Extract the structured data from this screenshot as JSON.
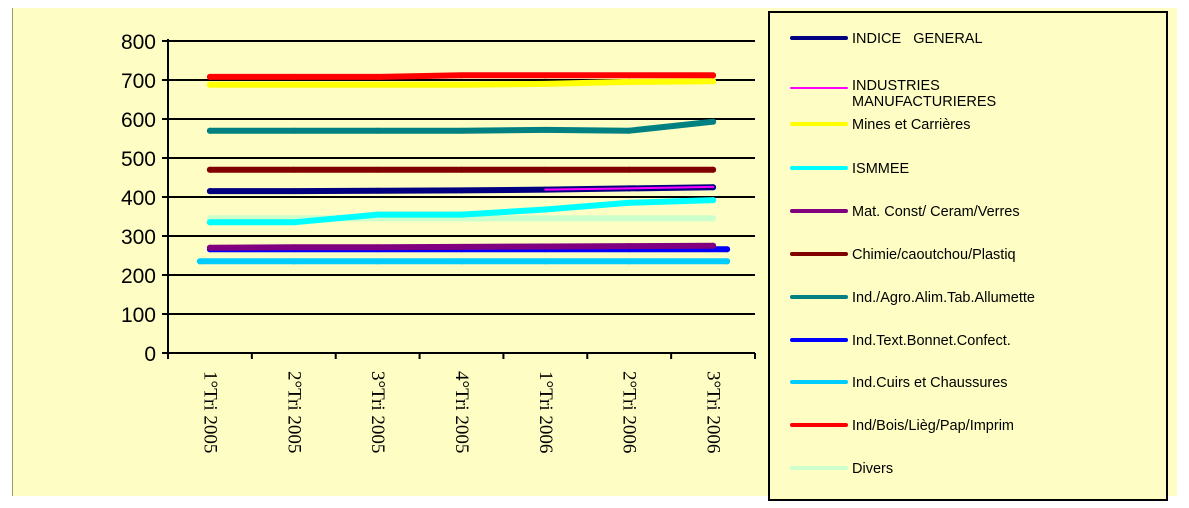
{
  "chart_data": {
    "type": "line",
    "title": "",
    "xlabel": "",
    "ylabel": "",
    "ylim": [
      0,
      800
    ],
    "yticks": [
      0,
      100,
      200,
      300,
      400,
      500,
      600,
      700,
      800
    ],
    "grid": true,
    "legend_position": "right",
    "categories": [
      "1°Tri 2005",
      "2°Tri 2005",
      "3°Tri 2005",
      "4°Tri 2005",
      "1°Tri 2006",
      "2°Tri 2006",
      "3°Tri 2006"
    ],
    "series": [
      {
        "name": "INDICE   GENERAL",
        "color": "#000080",
        "values": [
          415,
          415,
          416,
          417,
          419,
          422,
          425
        ]
      },
      {
        "name": "INDUSTRIES\nMANUFACTURIERES",
        "color": "#ff00ff",
        "values": [
          null,
          null,
          null,
          null,
          419,
          422,
          426
        ]
      },
      {
        "name": "Mines et Carrières",
        "color": "#ffff00",
        "values": [
          688,
          688,
          688,
          688,
          690,
          695,
          697
        ]
      },
      {
        "name": "ISMMEE",
        "color": "#00ffff",
        "values": [
          335,
          335,
          355,
          355,
          368,
          385,
          392
        ]
      },
      {
        "name": "Mat. Const/ Ceram/Verres",
        "color": "#800080",
        "values": [
          270,
          271,
          271,
          272,
          273,
          274,
          275
        ]
      },
      {
        "name": "Chimie/caoutchou/Plastiq",
        "color": "#800000",
        "values": [
          470,
          470,
          470,
          470,
          470,
          470,
          470
        ]
      },
      {
        "name": "Ind./Agro.Alim.Tab.Allumette",
        "color": "#008080",
        "values": [
          570,
          570,
          570,
          570,
          572,
          570,
          593
        ]
      },
      {
        "name": "Ind.Text.Bonnet.Confect.",
        "color": "#0000ff",
        "values": [
          266,
          266,
          266,
          266,
          266,
          266,
          266
        ]
      },
      {
        "name": "Ind.Cuirs et Chaussures",
        "color": "#00ccff",
        "values": [
          235,
          235,
          235,
          235,
          235,
          235,
          235
        ]
      },
      {
        "name": "Ind/Bois/Lièg/Pap/Imprim",
        "color": "#ff0000",
        "values": [
          708,
          708,
          708,
          712,
          712,
          712,
          712
        ]
      },
      {
        "name": "Divers",
        "color": "#ccffcc",
        "values": [
          345,
          345,
          345,
          345,
          345,
          345,
          345
        ]
      }
    ]
  }
}
